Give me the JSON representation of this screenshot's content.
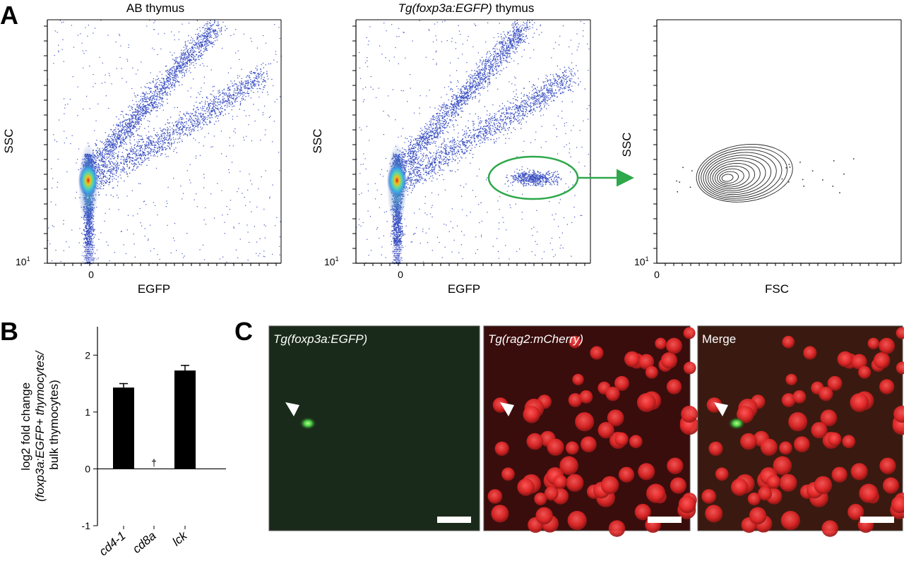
{
  "panels": {
    "a": {
      "letter": "A",
      "plots": [
        {
          "title": "AB thymus",
          "title_italic": "",
          "title_suffix": "",
          "xlabel": "EGFP",
          "ylabel": "SSC",
          "xzero": "0",
          "ymin_base": "10",
          "ymin_exp": "1"
        },
        {
          "title": "",
          "title_italic": "Tg(foxp3a:EGFP)",
          "title_suffix": " thymus",
          "xlabel": "EGFP",
          "ylabel": "SSC",
          "xzero": "0",
          "ymin_base": "10",
          "ymin_exp": "1"
        },
        {
          "title": "",
          "title_italic": "",
          "title_suffix": "",
          "xlabel": "FSC",
          "ylabel": "SSC",
          "xzero": "0",
          "ymin_base": "10",
          "ymin_exp": "1"
        }
      ],
      "colors": {
        "dots": "#3a4fc2",
        "hot": "#d81e1e",
        "gate": "#2da84a",
        "contour": "#222222"
      }
    },
    "b": {
      "letter": "B",
      "ylabel_lines": [
        "log2 fold change",
        "(foxp3a:EGFP+ thymocytes/",
        "bulk thymocytes)"
      ],
      "ylabel_italic_part": "foxp3a:EGFP",
      "dagger": "†"
    },
    "c": {
      "letter": "C",
      "images": [
        {
          "title": "Tg(foxp3a:EGFP)",
          "kind": "green"
        },
        {
          "title": "Tg(rag2:mCherry)",
          "kind": "red"
        },
        {
          "title": "Merge",
          "kind": "merge"
        }
      ]
    }
  },
  "chart_data": {
    "type": "bar",
    "categories": [
      "cd4-1",
      "cd8a",
      "lck"
    ],
    "values": [
      1.43,
      null,
      1.73
    ],
    "errors": [
      0.07,
      null,
      0.09
    ],
    "ylim": [
      -1,
      2.5
    ],
    "yticks": [
      -1,
      0,
      1,
      2
    ],
    "annotations": [
      {
        "category": "cd8a",
        "text": "†"
      }
    ],
    "xlabel": "",
    "ylabel": "log2 fold change (foxp3a:EGFP+ thymocytes/ bulk thymocytes)"
  }
}
